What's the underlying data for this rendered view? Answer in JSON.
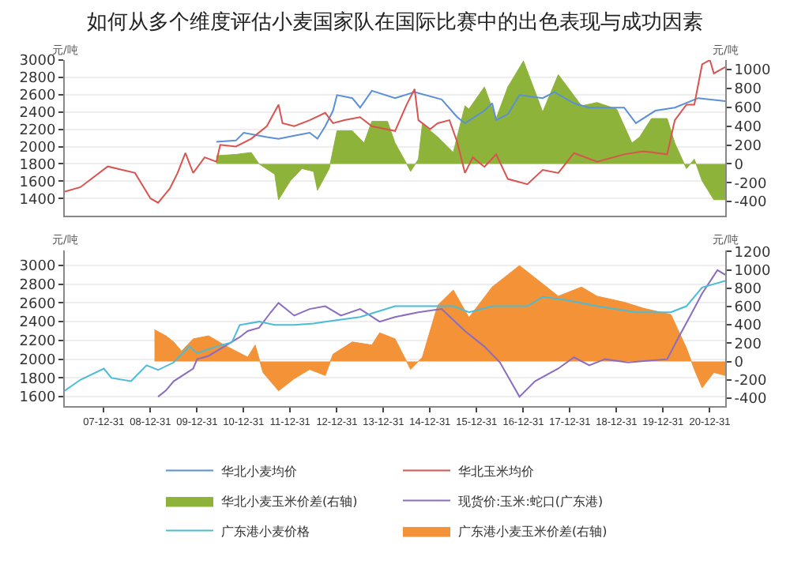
{
  "chart_data": [
    {
      "type": "line",
      "title": "如何从多个维度评估小麦国家队在国际比赛中的出色表现与成功因素",
      "ylabel": "元/吨",
      "y2label": "元/吨",
      "xlim": [
        "2007-03",
        "2021-05"
      ],
      "ylim": [
        1200,
        3000
      ],
      "yticks": [
        1400,
        1600,
        1800,
        2000,
        2200,
        2400,
        2600,
        2800,
        3000
      ],
      "y2lim": [
        -550,
        1100
      ],
      "y2ticks": [
        -400,
        -200,
        0,
        200,
        400,
        600,
        800,
        1000
      ],
      "tick_labels": "y",
      "grid": "y",
      "legend": "bottom",
      "series": [
        {
          "name": "华北小麦均价",
          "color": "#5b8fd6",
          "x": [
            "2010-06",
            "2010-11",
            "2011-01",
            "2011-07",
            "2011-10",
            "2012-02",
            "2012-06",
            "2012-08",
            "2012-10",
            "2012-12",
            "2013-01",
            "2013-05",
            "2013-07",
            "2013-10",
            "2014-04",
            "2014-09",
            "2015-04",
            "2015-08",
            "2015-10",
            "2016-03",
            "2016-05",
            "2016-06",
            "2016-09",
            "2016-12",
            "2017-06",
            "2017-09",
            "2018-02",
            "2018-06",
            "2019-03",
            "2019-06",
            "2019-11",
            "2020-04",
            "2020-10",
            "2021-05"
          ],
          "values": [
            2055,
            2070,
            2160,
            2110,
            2090,
            2125,
            2160,
            2090,
            2235,
            2415,
            2595,
            2560,
            2450,
            2645,
            2560,
            2630,
            2545,
            2340,
            2270,
            2415,
            2500,
            2305,
            2375,
            2595,
            2560,
            2630,
            2500,
            2450,
            2450,
            2270,
            2415,
            2450,
            2560,
            2525
          ]
        },
        {
          "name": "华北玉米均价",
          "color": "#d9534f",
          "x": [
            "2007-03",
            "2007-07",
            "2008-02",
            "2008-09",
            "2009-01",
            "2009-03",
            "2009-06",
            "2009-08",
            "2009-10",
            "2009-12",
            "2010-03",
            "2010-06",
            "2010-07",
            "2010-11",
            "2011-03",
            "2011-07",
            "2011-10",
            "2011-11",
            "2012-02",
            "2012-06",
            "2012-10",
            "2012-12",
            "2013-03",
            "2013-07",
            "2013-10",
            "2014-04",
            "2014-07",
            "2014-09",
            "2014-10",
            "2015-01",
            "2015-03",
            "2015-06",
            "2015-08",
            "2015-10",
            "2015-12",
            "2016-03",
            "2016-06",
            "2016-09",
            "2017-02",
            "2017-06",
            "2017-10",
            "2018-02",
            "2018-08",
            "2019-03",
            "2019-08",
            "2020-02",
            "2020-04",
            "2020-07",
            "2020-09",
            "2020-11",
            "2021-01",
            "2021-02",
            "2021-05"
          ],
          "values": [
            1480,
            1530,
            1770,
            1695,
            1400,
            1350,
            1515,
            1695,
            1925,
            1695,
            1875,
            1825,
            2020,
            2000,
            2090,
            2235,
            2485,
            2270,
            2235,
            2305,
            2390,
            2270,
            2305,
            2340,
            2235,
            2180,
            2485,
            2665,
            2305,
            2200,
            2270,
            2305,
            2050,
            1695,
            1875,
            1765,
            1910,
            1625,
            1565,
            1730,
            1695,
            1925,
            1825,
            1910,
            1945,
            1910,
            2305,
            2485,
            2485,
            2950,
            3000,
            2845,
            2920
          ]
        },
        {
          "name": "华北小麦玉米价差(右轴)",
          "type": "area",
          "axis": "y2",
          "color": "#8db33a",
          "x": [
            "2010-06",
            "2010-11",
            "2011-03",
            "2011-05",
            "2011-09",
            "2011-10",
            "2012-01",
            "2012-04",
            "2012-07",
            "2012-08",
            "2012-11",
            "2013-01",
            "2013-05",
            "2013-08",
            "2013-10",
            "2014-02",
            "2014-04",
            "2014-07",
            "2014-08",
            "2014-10",
            "2014-11",
            "2015-03",
            "2015-07",
            "2015-10",
            "2015-11",
            "2016-03",
            "2016-06",
            "2016-09",
            "2017-01",
            "2017-06",
            "2017-10",
            "2018-04",
            "2018-08",
            "2019-01",
            "2019-05",
            "2019-07",
            "2019-10",
            "2020-02",
            "2020-04",
            "2020-07",
            "2020-09",
            "2020-11",
            "2021-02",
            "2021-05"
          ],
          "values": [
            86,
            100,
            120,
            0,
            -110,
            -380,
            -180,
            -50,
            -80,
            -280,
            -50,
            350,
            350,
            220,
            450,
            450,
            220,
            0,
            -80,
            50,
            420,
            285,
            120,
            615,
            580,
            815,
            480,
            815,
            1090,
            550,
            945,
            615,
            650,
            580,
            220,
            285,
            480,
            480,
            220,
            -50,
            50,
            -180,
            -380,
            -380
          ]
        }
      ]
    },
    {
      "type": "line",
      "ylabel": "元/吨",
      "y2label": "元/吨",
      "xlim": [
        "2007-03",
        "2021-05"
      ],
      "xticks": [
        {
          "value": "2007-12-31",
          "label": "07-12-31"
        },
        {
          "value": "2008-12-31",
          "label": "08-12-31"
        },
        {
          "value": "2009-12-31",
          "label": "09-12-31"
        },
        {
          "value": "2010-12-31",
          "label": "10-12-31"
        },
        {
          "value": "2011-12-31",
          "label": "11-12-31"
        },
        {
          "value": "2012-12-31",
          "label": "12-12-31"
        },
        {
          "value": "2013-12-31",
          "label": "13-12-31"
        },
        {
          "value": "2014-12-31",
          "label": "14-12-31"
        },
        {
          "value": "2015-12-31",
          "label": "15-12-31"
        },
        {
          "value": "2016-12-31",
          "label": "16-12-31"
        },
        {
          "value": "2017-12-31",
          "label": "17-12-31"
        },
        {
          "value": "2018-12-31",
          "label": "18-12-31"
        },
        {
          "value": "2019-12-31",
          "label": "19-12-31"
        },
        {
          "value": "2020-12-31",
          "label": "20-12-31"
        }
      ],
      "ylim": [
        1500,
        3160
      ],
      "yticks": [
        1600,
        1800,
        2000,
        2200,
        2400,
        2600,
        2800,
        3000
      ],
      "y2lim": [
        -487,
        1213
      ],
      "y2ticks": [
        -400,
        -200,
        0,
        200,
        400,
        600,
        800,
        1000,
        1200
      ],
      "grid": "y",
      "legend": "bottom",
      "series": [
        {
          "name": "现货价:玉米:蛇口(广东港)",
          "color": "#8a6cc0",
          "x": [
            "2009-03",
            "2009-05",
            "2009-07",
            "2009-12",
            "2010-01",
            "2010-04",
            "2010-08",
            "2010-12",
            "2011-02",
            "2011-05",
            "2011-08",
            "2011-10",
            "2012-02",
            "2012-06",
            "2012-10",
            "2013-02",
            "2013-07",
            "2013-12",
            "2014-04",
            "2014-10",
            "2015-04",
            "2015-10",
            "2016-03",
            "2016-07",
            "2016-12",
            "2017-04",
            "2017-10",
            "2018-02",
            "2018-06",
            "2018-10",
            "2019-04",
            "2019-08",
            "2020-02",
            "2020-05",
            "2020-08",
            "2020-11",
            "2021-03",
            "2021-05"
          ],
          "values": [
            1600,
            1665,
            1765,
            1900,
            2000,
            2035,
            2135,
            2235,
            2300,
            2335,
            2500,
            2600,
            2465,
            2535,
            2565,
            2465,
            2535,
            2400,
            2450,
            2500,
            2535,
            2300,
            2135,
            1965,
            1600,
            1765,
            1900,
            2020,
            1935,
            2000,
            1965,
            1980,
            2000,
            2235,
            2465,
            2700,
            2950,
            2900
          ]
        },
        {
          "name": "广东港小麦价格",
          "color": "#4bbbd6",
          "x": [
            "2007-03",
            "2007-07",
            "2008-01",
            "2008-03",
            "2008-08",
            "2008-12",
            "2009-03",
            "2009-07",
            "2009-11",
            "2010-01",
            "2010-06",
            "2010-10",
            "2010-12",
            "2011-05",
            "2011-09",
            "2012-02",
            "2012-07",
            "2012-10",
            "2013-07",
            "2014-04",
            "2015-07",
            "2015-11",
            "2016-05",
            "2017-02",
            "2017-06",
            "2017-12",
            "2018-08",
            "2019-06",
            "2020-03",
            "2020-07",
            "2020-11",
            "2021-05"
          ],
          "values": [
            1665,
            1780,
            1900,
            1800,
            1765,
            1935,
            1885,
            1965,
            2135,
            2065,
            2135,
            2180,
            2365,
            2400,
            2365,
            2365,
            2380,
            2400,
            2450,
            2565,
            2565,
            2500,
            2565,
            2565,
            2665,
            2630,
            2565,
            2500,
            2500,
            2565,
            2765,
            2835
          ]
        },
        {
          "name": "广东港小麦玉米价差(右轴)",
          "type": "area",
          "axis": "y2",
          "color": "#f39237",
          "x": [
            "2009-02",
            "2009-05",
            "2009-07",
            "2009-09",
            "2009-12",
            "2010-04",
            "2010-08",
            "2011-02",
            "2011-04",
            "2011-06",
            "2011-10",
            "2012-02",
            "2012-06",
            "2012-10",
            "2012-12",
            "2013-05",
            "2013-10",
            "2013-12",
            "2014-04",
            "2014-08",
            "2014-11",
            "2015-03",
            "2015-07",
            "2015-11",
            "2016-05",
            "2016-12",
            "2017-06",
            "2017-10",
            "2018-04",
            "2018-08",
            "2019-03",
            "2019-08",
            "2020-03",
            "2020-07",
            "2020-09",
            "2020-11",
            "2021-02",
            "2021-05"
          ],
          "values": [
            347,
            280,
            213,
            113,
            247,
            280,
            180,
            47,
            180,
            -120,
            -320,
            -187,
            -87,
            -153,
            80,
            213,
            180,
            313,
            247,
            -87,
            47,
            613,
            780,
            480,
            813,
            1047,
            847,
            713,
            813,
            713,
            647,
            580,
            513,
            147,
            -87,
            -287,
            -120,
            -153
          ]
        }
      ]
    }
  ]
}
